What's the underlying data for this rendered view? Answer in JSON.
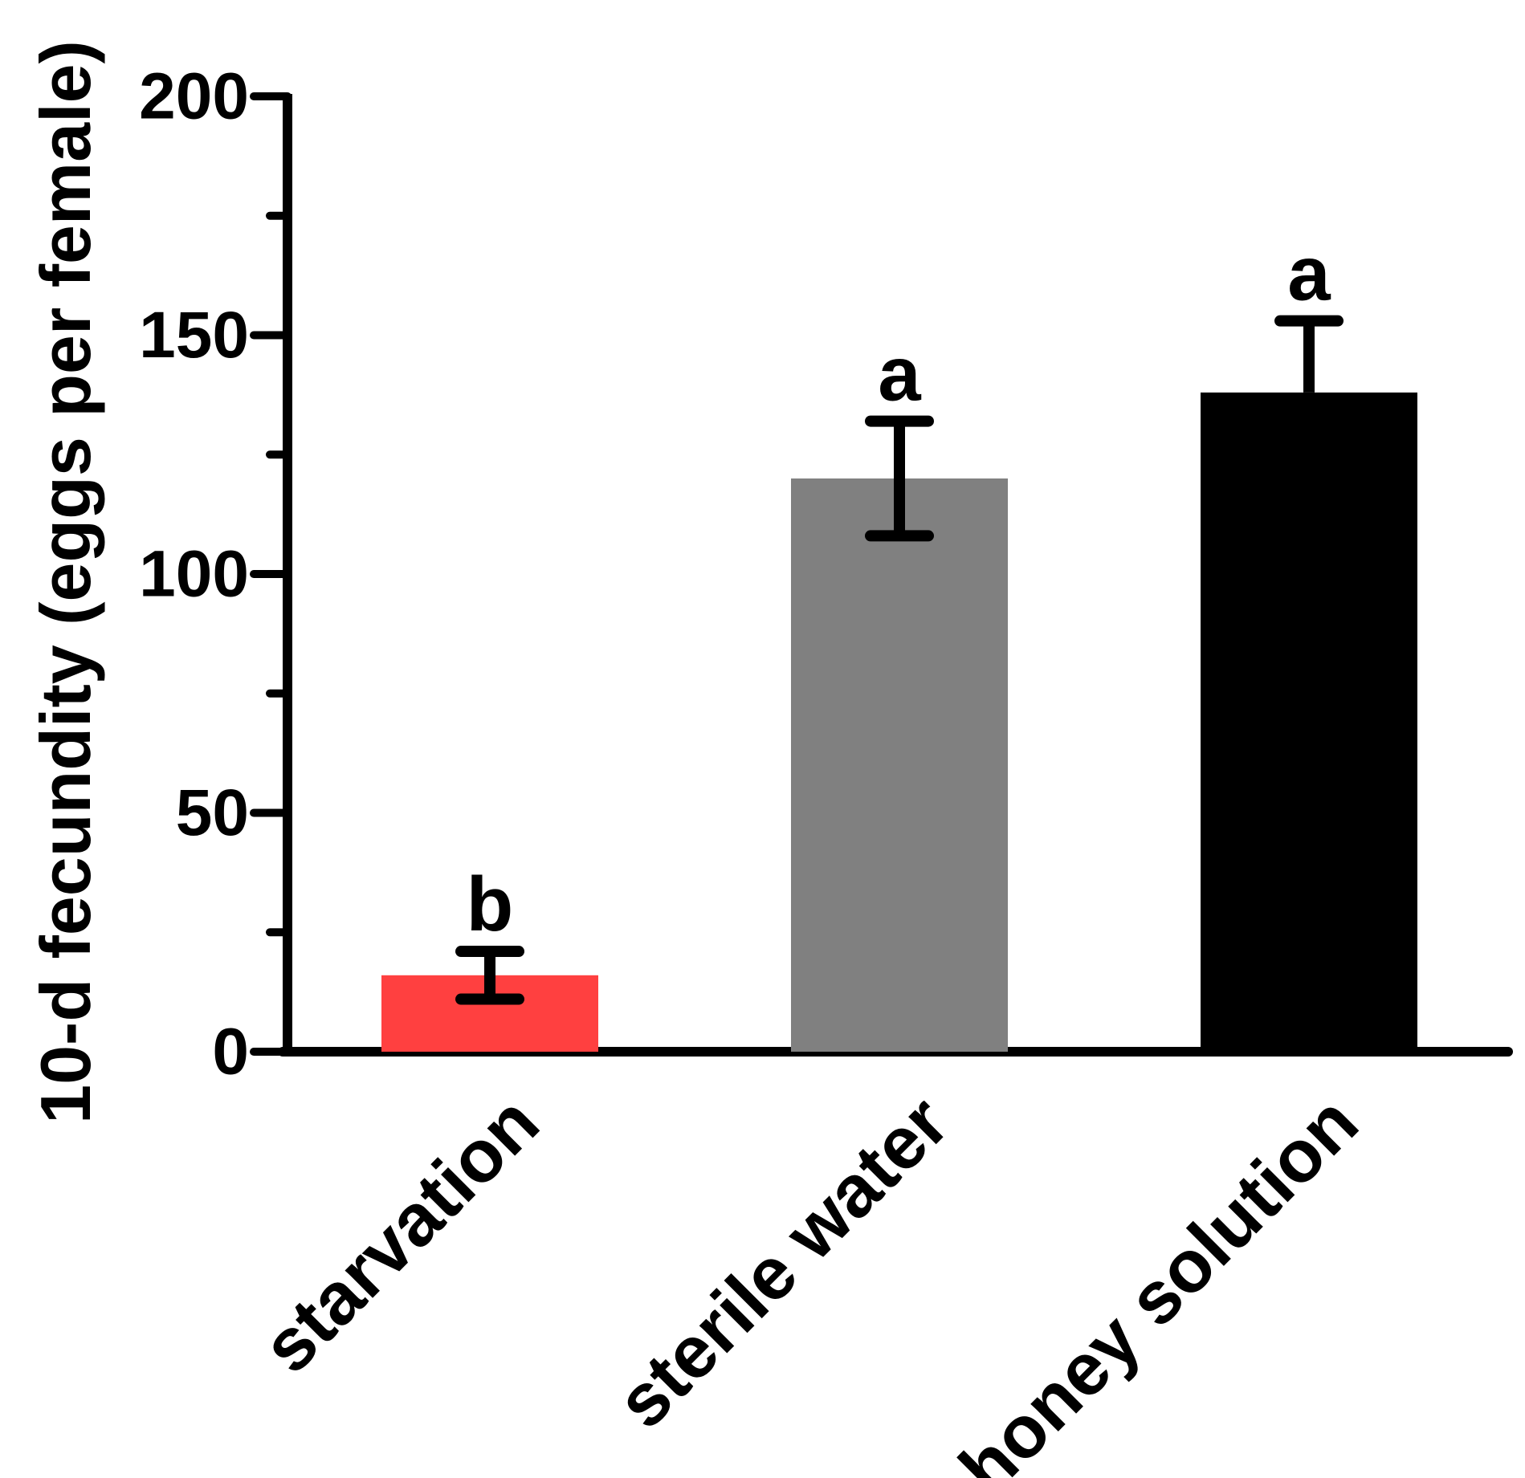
{
  "chart_data": {
    "type": "bar",
    "title": "",
    "xlabel": "",
    "ylabel": "10-d fecundity (eggs per female)",
    "ylim": [
      0,
      200
    ],
    "yticks_major": [
      0,
      50,
      100,
      150,
      200
    ],
    "yticks_minor": [
      25,
      75,
      125,
      175
    ],
    "ytick_labels": [
      "0",
      "50",
      "100",
      "150",
      "200"
    ],
    "categories": [
      "starvation",
      "sterile water",
      "honey solution"
    ],
    "values": [
      16,
      120,
      138
    ],
    "error": [
      5,
      12,
      15
    ],
    "error_style": [
      "both",
      "both",
      "upper"
    ],
    "significance": [
      "b",
      "a",
      "a"
    ],
    "colors": [
      "#ff4040",
      "#808080",
      "#000000"
    ],
    "grid": false,
    "legend": "none"
  }
}
